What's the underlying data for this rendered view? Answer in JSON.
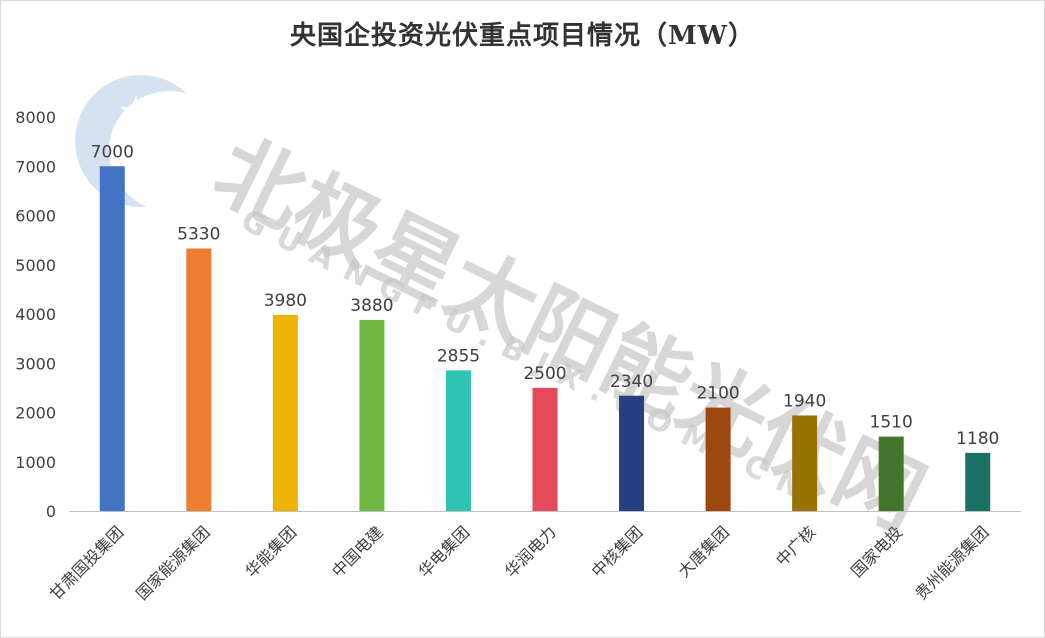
{
  "chart_data": {
    "type": "bar",
    "title": "央国企投资光伏重点项目情况（MW）",
    "xlabel": "",
    "ylabel": "",
    "categories": [
      "甘肃国投集团",
      "国家能源集团",
      "华能集团",
      "中国电建",
      "华电集团",
      "华润电力",
      "中核集团",
      "大唐集团",
      "中广核",
      "国家电投",
      "贵州能源集团"
    ],
    "values": [
      7000,
      5330,
      3980,
      3880,
      2855,
      2500,
      2340,
      2100,
      1940,
      1510,
      1180
    ],
    "value_labels": [
      "7000",
      "5330",
      "3980",
      "3880",
      "2855",
      "2500",
      "2340",
      "2100",
      "1940",
      "1510",
      "1180"
    ],
    "colors": [
      "#4472c4",
      "#ed7d31",
      "#f0b400",
      "#70b843",
      "#2ec3b2",
      "#e64a5a",
      "#263f80",
      "#9e480e",
      "#997300",
      "#43752a",
      "#1b7163"
    ],
    "ylim": [
      0,
      8000
    ],
    "yticks": [
      0,
      1000,
      2000,
      3000,
      4000,
      5000,
      6000,
      7000,
      8000
    ],
    "grid": false,
    "legend": "none"
  },
  "watermark": {
    "main_text": "北极星太阳能光伏网",
    "sub_text": "GUANGFU.BJX.COM.CN",
    "color": "#bfbfbf",
    "logo_color": "#adc6e3"
  }
}
